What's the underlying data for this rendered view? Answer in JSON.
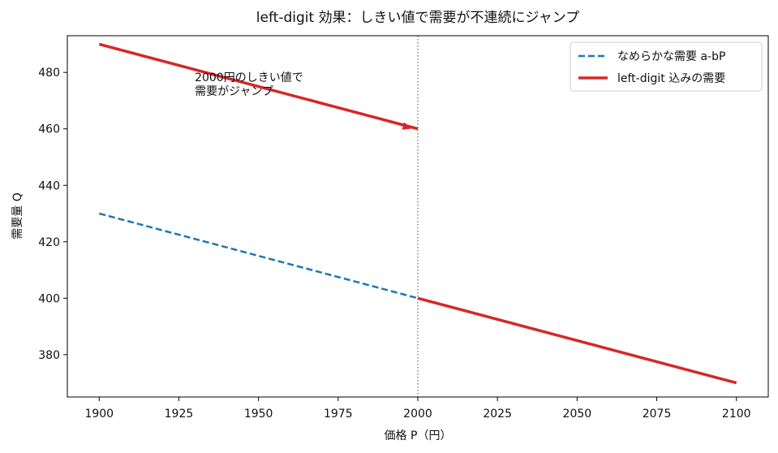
{
  "chart_data": {
    "type": "line",
    "title": "left-digit 効果：しきい値で需要が不連続にジャンプ",
    "xlabel": "価格 P（円）",
    "ylabel": "需要量 Q",
    "xlim": [
      1890,
      2110
    ],
    "ylim": [
      365,
      493
    ],
    "x_ticks": [
      1900,
      1925,
      1950,
      1975,
      2000,
      2025,
      2050,
      2075,
      2100
    ],
    "y_ticks": [
      380,
      400,
      420,
      440,
      460,
      480
    ],
    "grid": false,
    "legend_position": "top-right",
    "threshold_x": 2000,
    "series": [
      {
        "name": "なめらかな需要 a-bP",
        "style": "dashed",
        "color": "#1f77b4",
        "x": [
          1900,
          2000
        ],
        "y": [
          430,
          400
        ]
      },
      {
        "name": "left-digit 込みの需要",
        "style": "solid",
        "color": "#d62728",
        "segments": [
          {
            "x": [
              1900,
              2000
            ],
            "y": [
              490,
              460
            ]
          },
          {
            "x": [
              2000,
              2100
            ],
            "y": [
              400,
              370
            ]
          }
        ]
      }
    ],
    "annotation": {
      "lines": [
        "2000円のしきい値で",
        "需要がジャンプ"
      ],
      "text_at": [
        1930,
        476
      ],
      "arrow_to": [
        1998,
        460.2
      ]
    }
  }
}
